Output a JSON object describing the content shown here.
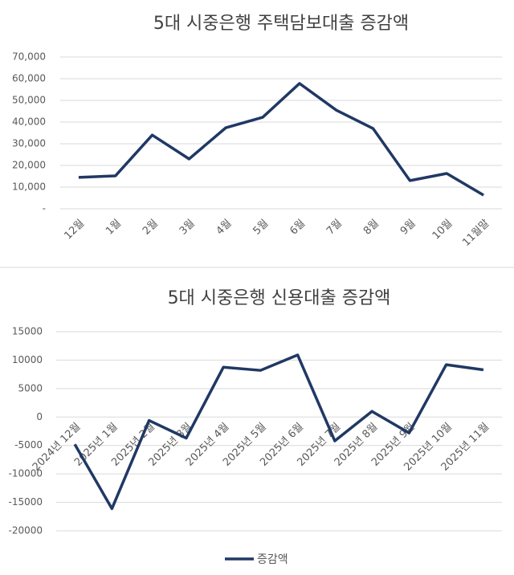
{
  "chart_data": [
    {
      "type": "line",
      "title": "5대 시중은행 주택담보대출 증감액",
      "categories": [
        "12월",
        "1월",
        "2월",
        "3월",
        "4월",
        "5월",
        "6월",
        "7월",
        "8월",
        "9월",
        "10월",
        "11월말"
      ],
      "values": [
        14500,
        15200,
        34000,
        23000,
        37400,
        42200,
        57800,
        45500,
        37000,
        13000,
        16300,
        6300
      ],
      "color": "#203864",
      "ylim": [
        0,
        70000
      ],
      "yticks": [
        {
          "value": 0,
          "label": "-"
        },
        {
          "value": 10000,
          "label": "10,000"
        },
        {
          "value": 20000,
          "label": "20,000"
        },
        {
          "value": 30000,
          "label": "30,000"
        },
        {
          "value": 40000,
          "label": "40,000"
        },
        {
          "value": 50000,
          "label": "50,000"
        },
        {
          "value": 60000,
          "label": "60,000"
        },
        {
          "value": 70000,
          "label": "70,000"
        }
      ],
      "grid": true
    },
    {
      "type": "line",
      "title": "5대 시중은행 신용대출 증감액",
      "categories": [
        "2024년 12월",
        "2025년 1월",
        "2025년 2월",
        "2025년 3월",
        "2025년 4월",
        "2025년 5월",
        "2025년 6월",
        "2025년 7월",
        "2025년 8월",
        "2025년 9월",
        "2025년 10월",
        "2025년 11월"
      ],
      "series": [
        {
          "name": "증감액",
          "color": "#203864",
          "values": [
            -4800,
            -16100,
            -600,
            -3700,
            8750,
            8200,
            10900,
            -4200,
            1000,
            -2800,
            9200,
            8300
          ]
        }
      ],
      "ylim": [
        -20000,
        15000
      ],
      "yticks": [
        -20000,
        -15000,
        -10000,
        -5000,
        0,
        5000,
        10000,
        15000
      ],
      "grid": true,
      "legend": "bottom"
    }
  ]
}
